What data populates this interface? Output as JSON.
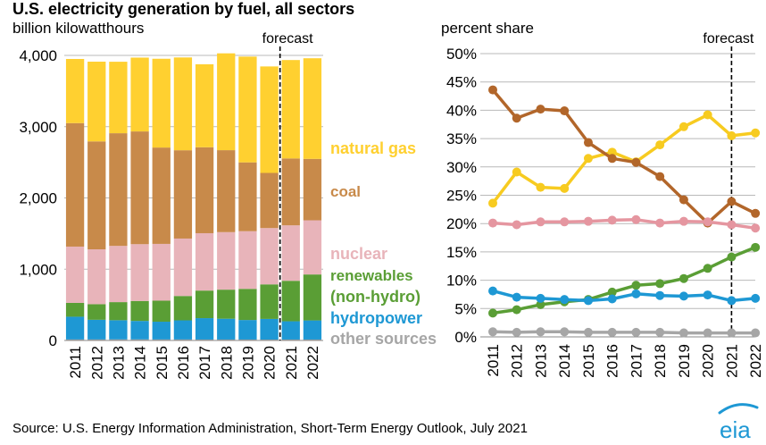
{
  "title": "U.S. electricity generation by fuel, all sectors",
  "source": "Source: U.S. Energy Information Administration, Short-Term Energy Outlook, July 2021",
  "logo_text": "eia",
  "colors": {
    "natural_gas": "#FFD030",
    "coal": "#C88A4A",
    "nuclear": "#E8B4BA",
    "renewables": "#5A9E35",
    "hydropower": "#1E98D4",
    "other": "#A6A6A6",
    "nuclear_line": "#E596A0",
    "coal_line": "#B2662A",
    "gas_line": "#F7CB20",
    "grid": "#B9B9B9",
    "forecast_line": "#000000"
  },
  "chart_data": [
    {
      "type": "bar",
      "subtitle": "billion kilowatthours",
      "forecast_label": "forecast",
      "forecast_from": "2021",
      "categories": [
        "2011",
        "2012",
        "2013",
        "2014",
        "2015",
        "2016",
        "2017",
        "2018",
        "2019",
        "2020",
        "2021",
        "2022"
      ],
      "ylim": [
        0,
        4000
      ],
      "yticks": [
        0,
        1000,
        2000,
        3000,
        4000
      ],
      "ytick_labels": [
        "0",
        "1,000",
        "2,000",
        "3,000",
        "4,000"
      ],
      "grid": true,
      "stacked": true,
      "series": [
        {
          "name": "other sources",
          "key": "other",
          "values": [
            14,
            14,
            15,
            15,
            14,
            14,
            13,
            13,
            13,
            12,
            13,
            13
          ]
        },
        {
          "name": "hydropower",
          "key": "hydropower",
          "values": [
            319,
            276,
            269,
            259,
            249,
            268,
            300,
            292,
            274,
            290,
            256,
            268
          ]
        },
        {
          "name": "renewables (non-hydro)",
          "key": "renewables",
          "values": [
            194,
            219,
            254,
            280,
            295,
            342,
            387,
            408,
            437,
            485,
            568,
            645
          ]
        },
        {
          "name": "nuclear",
          "key": "nuclear",
          "values": [
            790,
            770,
            789,
            797,
            797,
            806,
            805,
            807,
            809,
            790,
            778,
            760
          ]
        },
        {
          "name": "coal",
          "key": "coal",
          "values": [
            1733,
            1514,
            1581,
            1582,
            1352,
            1239,
            1206,
            1150,
            966,
            774,
            939,
            862
          ]
        },
        {
          "name": "natural gas",
          "key": "natural_gas",
          "values": [
            900,
            1119,
            1003,
            1036,
            1246,
            1302,
            1165,
            1359,
            1484,
            1494,
            1381,
            1412
          ]
        }
      ],
      "legend": [
        {
          "text": "natural gas",
          "key": "natural_gas"
        },
        {
          "text": "coal",
          "key": "coal"
        },
        {
          "text": "nuclear",
          "key": "nuclear"
        },
        {
          "text": "renewables",
          "key": "renewables"
        },
        {
          "text": "(non-hydro)",
          "key": "renewables"
        },
        {
          "text": "hydropower",
          "key": "hydropower"
        },
        {
          "text": "other sources",
          "key": "other"
        }
      ]
    },
    {
      "type": "line",
      "subtitle": "percent share",
      "forecast_label": "forecast",
      "forecast_from": "2021",
      "x": [
        "2011",
        "2012",
        "2013",
        "2014",
        "2015",
        "2016",
        "2017",
        "2018",
        "2019",
        "2020",
        "2021",
        "2022"
      ],
      "ylim": [
        0,
        50
      ],
      "yticks": [
        0,
        5,
        10,
        15,
        20,
        25,
        30,
        35,
        40,
        45,
        50
      ],
      "ytick_labels": [
        "0%",
        "5%",
        "10%",
        "15%",
        "20%",
        "25%",
        "30%",
        "35%",
        "40%",
        "45%",
        "50%"
      ],
      "grid": true,
      "series": [
        {
          "key": "gas_line",
          "values": [
            23.6,
            29.1,
            26.4,
            26.2,
            31.5,
            32.6,
            30.9,
            33.9,
            37.1,
            39.2,
            35.5,
            36.0
          ]
        },
        {
          "key": "coal_line",
          "values": [
            43.6,
            38.6,
            40.2,
            39.9,
            34.3,
            31.5,
            30.8,
            28.3,
            24.2,
            20.1,
            23.9,
            21.8
          ]
        },
        {
          "key": "nuclear_line",
          "values": [
            20.1,
            19.8,
            20.3,
            20.3,
            20.4,
            20.6,
            20.7,
            20.1,
            20.4,
            20.3,
            19.8,
            19.2
          ]
        },
        {
          "key": "renewables",
          "values": [
            4.2,
            4.8,
            5.7,
            6.2,
            6.6,
            7.9,
            9.1,
            9.4,
            10.3,
            12.1,
            14.1,
            15.8
          ]
        },
        {
          "key": "hydropower",
          "values": [
            8.1,
            7.0,
            6.8,
            6.6,
            6.4,
            6.7,
            7.6,
            7.3,
            7.2,
            7.4,
            6.4,
            6.8
          ]
        },
        {
          "key": "other",
          "values": [
            0.9,
            0.8,
            0.9,
            0.9,
            0.8,
            0.8,
            0.8,
            0.8,
            0.7,
            0.7,
            0.7,
            0.7
          ]
        }
      ]
    }
  ]
}
